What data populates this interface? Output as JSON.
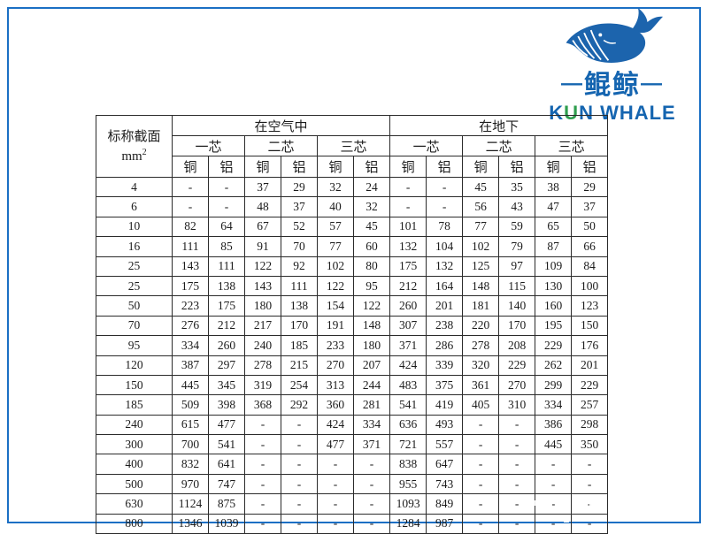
{
  "logo": {
    "dash_left": "—",
    "brand_cn": "鲲鲸",
    "dash_right": "—",
    "en_k": "K",
    "en_u": "U",
    "en_rest": "N WHALE",
    "colors": {
      "blue": "#1565b0",
      "green": "#2f9e4e"
    }
  },
  "frame_color": "#1b6fc4",
  "table": {
    "corner_header": {
      "line1": "标称截面",
      "unit_base": "mm",
      "unit_sup": "2"
    },
    "group_headers": [
      "在空气中",
      "在地下"
    ],
    "core_headers": [
      "一芯",
      "二芯",
      "三芯",
      "一芯",
      "二芯",
      "三芯"
    ],
    "material_headers": [
      "铜",
      "铝",
      "铜",
      "铝",
      "铜",
      "铝",
      "铜",
      "铝",
      "铜",
      "铝",
      "铜",
      "铝"
    ],
    "rows": [
      {
        "section": "4",
        "values": [
          "-",
          "-",
          "37",
          "29",
          "32",
          "24",
          "-",
          "-",
          "45",
          "35",
          "38",
          "29"
        ]
      },
      {
        "section": "6",
        "values": [
          "-",
          "-",
          "48",
          "37",
          "40",
          "32",
          "-",
          "-",
          "56",
          "43",
          "47",
          "37"
        ]
      },
      {
        "section": "10",
        "values": [
          "82",
          "64",
          "67",
          "52",
          "57",
          "45",
          "101",
          "78",
          "77",
          "59",
          "65",
          "50"
        ]
      },
      {
        "section": "16",
        "values": [
          "111",
          "85",
          "91",
          "70",
          "77",
          "60",
          "132",
          "104",
          "102",
          "79",
          "87",
          "66"
        ]
      },
      {
        "section": "25",
        "values": [
          "143",
          "111",
          "122",
          "92",
          "102",
          "80",
          "175",
          "132",
          "125",
          "97",
          "109",
          "84"
        ]
      },
      {
        "section": "25",
        "values": [
          "175",
          "138",
          "143",
          "111",
          "122",
          "95",
          "212",
          "164",
          "148",
          "115",
          "130",
          "100"
        ]
      },
      {
        "section": "50",
        "values": [
          "223",
          "175",
          "180",
          "138",
          "154",
          "122",
          "260",
          "201",
          "181",
          "140",
          "160",
          "123"
        ]
      },
      {
        "section": "70",
        "values": [
          "276",
          "212",
          "217",
          "170",
          "191",
          "148",
          "307",
          "238",
          "220",
          "170",
          "195",
          "150"
        ]
      },
      {
        "section": "95",
        "values": [
          "334",
          "260",
          "240",
          "185",
          "233",
          "180",
          "371",
          "286",
          "278",
          "208",
          "229",
          "176"
        ]
      },
      {
        "section": "120",
        "values": [
          "387",
          "297",
          "278",
          "215",
          "270",
          "207",
          "424",
          "339",
          "320",
          "229",
          "262",
          "201"
        ]
      },
      {
        "section": "150",
        "values": [
          "445",
          "345",
          "319",
          "254",
          "313",
          "244",
          "483",
          "375",
          "361",
          "270",
          "299",
          "229"
        ]
      },
      {
        "section": "185",
        "values": [
          "509",
          "398",
          "368",
          "292",
          "360",
          "281",
          "541",
          "419",
          "405",
          "310",
          "334",
          "257"
        ]
      },
      {
        "section": "240",
        "values": [
          "615",
          "477",
          "-",
          "-",
          "424",
          "334",
          "636",
          "493",
          "-",
          "-",
          "386",
          "298"
        ]
      },
      {
        "section": "300",
        "values": [
          "700",
          "541",
          "-",
          "-",
          "477",
          "371",
          "721",
          "557",
          "-",
          "-",
          "445",
          "350"
        ]
      },
      {
        "section": "400",
        "values": [
          "832",
          "641",
          "-",
          "-",
          "-",
          "-",
          "838",
          "647",
          "-",
          "-",
          "-",
          "-"
        ]
      },
      {
        "section": "500",
        "values": [
          "970",
          "747",
          "-",
          "-",
          "-",
          "-",
          "955",
          "743",
          "-",
          "-",
          "-",
          "-"
        ]
      },
      {
        "section": "630",
        "values": [
          "1124",
          "875",
          "-",
          "-",
          "-",
          "-",
          "1093",
          "849",
          "-",
          "-",
          "-",
          "-"
        ]
      },
      {
        "section": "800",
        "values": [
          "1346",
          "1039",
          "-",
          "-",
          "-",
          "-",
          "1284",
          "987",
          "-",
          "-",
          "-",
          "-"
        ]
      }
    ]
  }
}
